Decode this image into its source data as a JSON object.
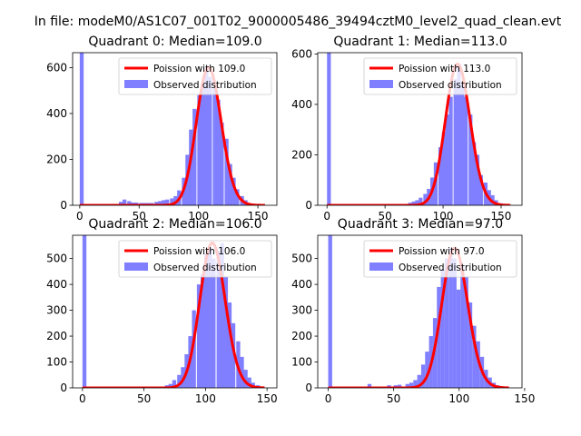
{
  "figure": {
    "suptitle": "In file: modeM0/AS1C07_001T02_9000005486_39494cztM0_level2_quad_clean.evt"
  },
  "colors": {
    "hist": "#7f7fff",
    "fit": "#ff0000",
    "axis": "#000000",
    "legend_edge": "#cccccc"
  },
  "chart_data": [
    {
      "type": "bar",
      "title": "Quadrant 0: Median=109.0",
      "median": 109.0,
      "xlim": [
        -6,
        166
      ],
      "ylim": [
        0,
        665
      ],
      "xticks": [
        0,
        50,
        100,
        150
      ],
      "yticks": [
        0,
        200,
        400,
        600
      ],
      "bin_width": 3.3,
      "bins_x": [
        0,
        33,
        36,
        40,
        43,
        46,
        50,
        53,
        56,
        59,
        63,
        66,
        69,
        72,
        76,
        79,
        82,
        86,
        89,
        92,
        95,
        99,
        102,
        105,
        108,
        112,
        115,
        118,
        122,
        125,
        128,
        131,
        135,
        138,
        141,
        145,
        148
      ],
      "bins_y": [
        665,
        15,
        25,
        18,
        12,
        12,
        10,
        10,
        10,
        10,
        15,
        18,
        22,
        25,
        30,
        40,
        65,
        120,
        220,
        330,
        420,
        480,
        520,
        600,
        560,
        510,
        460,
        360,
        290,
        180,
        120,
        70,
        40,
        22,
        10,
        6,
        3
      ],
      "legend": {
        "fit_label": "Poission with 109.0",
        "hist_label": "Observed distribution",
        "placement": "top-right"
      }
    },
    {
      "type": "bar",
      "title": "Quadrant 1: Median=113.0",
      "median": 113.0,
      "xlim": [
        -8,
        168
      ],
      "ylim": [
        0,
        605
      ],
      "xticks": [
        0,
        50,
        100,
        150
      ],
      "yticks": [
        0,
        200,
        400,
        600
      ],
      "bin_width": 3.3,
      "bins_x": [
        0,
        70,
        73,
        76,
        79,
        83,
        86,
        89,
        92,
        96,
        99,
        102,
        105,
        109,
        112,
        115,
        118,
        122,
        125,
        128,
        131,
        135,
        138,
        141,
        144,
        148,
        151
      ],
      "bins_y": [
        605,
        10,
        15,
        20,
        30,
        45,
        65,
        110,
        170,
        230,
        290,
        360,
        430,
        500,
        560,
        480,
        430,
        360,
        250,
        200,
        120,
        90,
        60,
        40,
        20,
        8,
        3
      ],
      "legend": {
        "fit_label": "Poission with 113.0",
        "hist_label": "Observed distribution",
        "placement": "top-right"
      }
    },
    {
      "type": "bar",
      "title": "Quadrant 2: Median=106.0",
      "median": 106.0,
      "xlim": [
        -8,
        158
      ],
      "ylim": [
        0,
        590
      ],
      "xticks": [
        0,
        50,
        100,
        150
      ],
      "yticks": [
        0,
        100,
        200,
        300,
        400,
        500
      ],
      "bin_width": 3.2,
      "bins_x": [
        0,
        64,
        67,
        70,
        73,
        77,
        80,
        83,
        86,
        89,
        93,
        96,
        99,
        102,
        105,
        109,
        112,
        115,
        118,
        121,
        125,
        128,
        131,
        134,
        137,
        141,
        144
      ],
      "bins_y": [
        590,
        5,
        10,
        15,
        30,
        50,
        80,
        130,
        200,
        300,
        400,
        440,
        520,
        540,
        500,
        530,
        560,
        430,
        330,
        250,
        180,
        120,
        70,
        40,
        20,
        10,
        4
      ],
      "legend": {
        "fit_label": "Poission with 106.0",
        "hist_label": "Observed distribution",
        "placement": "top-right"
      }
    },
    {
      "type": "bar",
      "title": "Quadrant 3: Median=97.0",
      "median": 97.0,
      "xlim": [
        -8,
        148
      ],
      "ylim": [
        0,
        590
      ],
      "xticks": [
        0,
        50,
        100,
        150
      ],
      "yticks": [
        0,
        100,
        200,
        300,
        400,
        500
      ],
      "bin_width": 3.0,
      "bins_x": [
        0,
        30,
        45,
        50,
        53,
        59,
        62,
        65,
        68,
        71,
        74,
        77,
        80,
        83,
        86,
        89,
        92,
        95,
        98,
        101,
        104,
        107,
        110,
        113,
        116,
        119,
        122,
        125,
        128,
        131,
        134
      ],
      "bins_y": [
        590,
        15,
        10,
        10,
        12,
        15,
        20,
        30,
        50,
        90,
        140,
        200,
        270,
        390,
        460,
        500,
        540,
        500,
        380,
        470,
        430,
        330,
        240,
        180,
        120,
        70,
        40,
        20,
        10,
        6,
        3
      ],
      "legend": {
        "fit_label": "Poission with 97.0",
        "hist_label": "Observed distribution",
        "placement": "top-right"
      }
    }
  ]
}
